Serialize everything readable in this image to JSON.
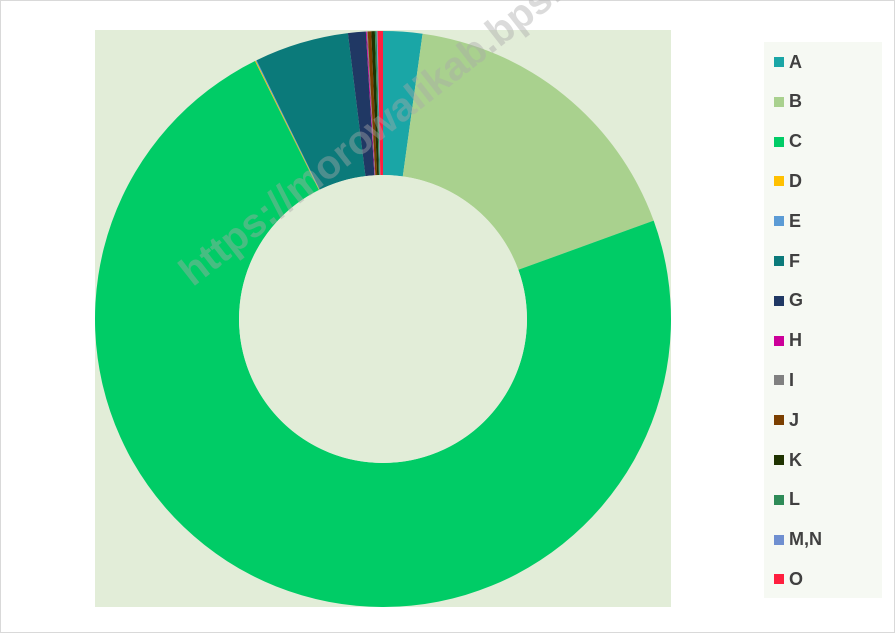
{
  "chart_data": {
    "type": "pie",
    "donut": true,
    "categories": [
      "A",
      "B",
      "C",
      "D",
      "E",
      "F",
      "G",
      "H",
      "I",
      "J",
      "K",
      "L",
      "M,N",
      "O"
    ],
    "values": [
      2.2,
      17.3,
      73.4,
      0.05,
      0.05,
      5.3,
      1.0,
      0.05,
      0.05,
      0.2,
      0.2,
      0.1,
      0.05,
      0.3
    ],
    "colors": [
      "#1aa6a6",
      "#a9d18e",
      "#00cc66",
      "#ffc000",
      "#5b9bd5",
      "#0b7a7a",
      "#203864",
      "#cc0099",
      "#808080",
      "#7b3f00",
      "#1f3300",
      "#2e8b57",
      "#6f8fd0",
      "#ff1f3f"
    ],
    "title": "",
    "legend_position": "right"
  },
  "watermark": "https://morowalikab.bps.go.id"
}
